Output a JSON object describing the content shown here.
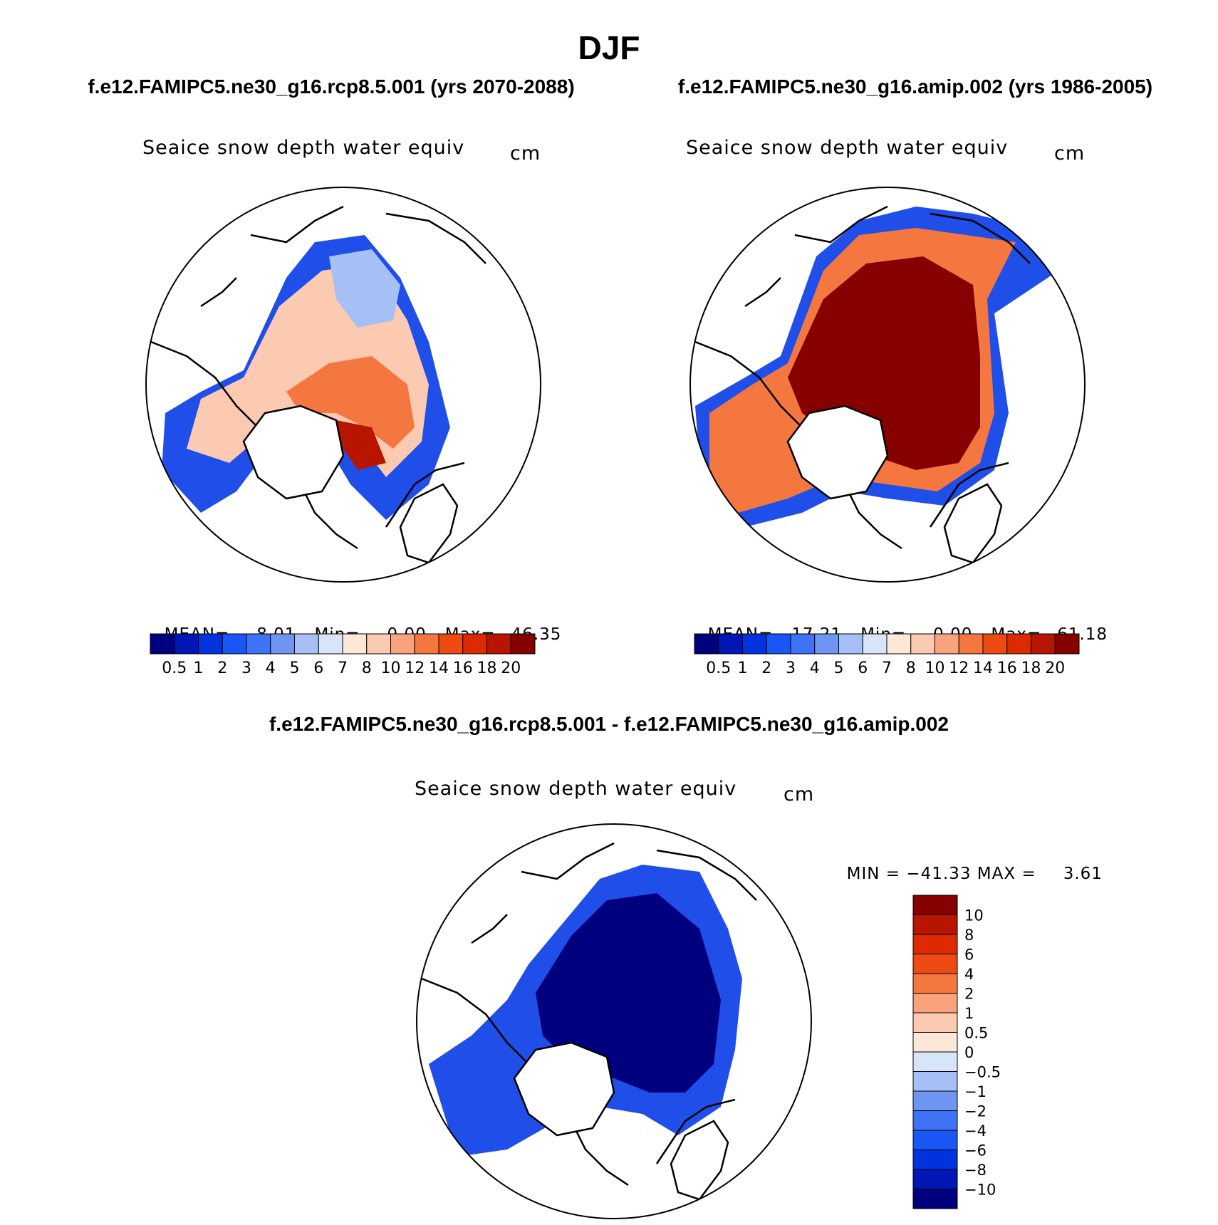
{
  "title": "DJF",
  "left_case": "f.e12.FAMIPC5.ne30_g16.rcp8.5.001 (yrs 2070-2088)",
  "right_case": "f.e12.FAMIPC5.ne30_g16.amip.002 (yrs 1986-2005)",
  "diff_case": "f.e12.FAMIPC5.ne30_g16.rcp8.5.001 - f.e12.FAMIPC5.ne30_g16.amip.002",
  "panel_title": "Seaice snow depth water equiv",
  "units": "cm",
  "panels": [
    {
      "mean_label": "MEAN=",
      "mean": "8.01",
      "min_label": "Min=",
      "min": "0.00",
      "max_label": "Max=",
      "max": "46.35"
    },
    {
      "mean_label": "MEAN=",
      "mean": "17.21",
      "min_label": "Min=",
      "min": "0.00",
      "max_label": "Max=",
      "max": "61.18"
    }
  ],
  "diff_stats": {
    "min_label": "MIN =",
    "min": "−41.33",
    "max_label": "MAX =",
    "max": "3.61"
  },
  "abs_colorbar": {
    "colors": [
      "#00007f",
      "#0016b5",
      "#0033dd",
      "#1a55f5",
      "#3f73f5",
      "#6e95f2",
      "#a6c0f5",
      "#d6e6f8",
      "#fde8d8",
      "#fccab0",
      "#f9a27d",
      "#f47740",
      "#ee4a14",
      "#dd2a00",
      "#b81500",
      "#860000"
    ],
    "labels": [
      "0.5",
      "1",
      "2",
      "3",
      "4",
      "5",
      "6",
      "7",
      "8",
      "10",
      "12",
      "14",
      "16",
      "18",
      "20"
    ]
  },
  "diff_colorbar": {
    "colors": [
      "#860000",
      "#b81500",
      "#dd2a00",
      "#ee4a14",
      "#f47740",
      "#f9a27d",
      "#fccab0",
      "#fde8d8",
      "#d6e6f8",
      "#a6c0f5",
      "#6e95f2",
      "#3f73f5",
      "#1a55f5",
      "#0033dd",
      "#0016b5",
      "#00007f"
    ],
    "labels": [
      "10",
      "8",
      "6",
      "4",
      "2",
      "1",
      "0.5",
      "0",
      "−0.5",
      "−1",
      "−2",
      "−4",
      "−6",
      "−8",
      "−10"
    ]
  }
}
